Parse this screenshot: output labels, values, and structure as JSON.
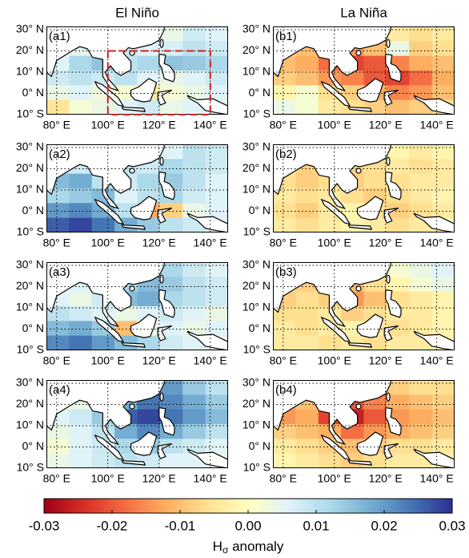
{
  "figure": {
    "type": "map-grid",
    "columns": [
      "El Niño",
      "La Niña"
    ],
    "xlim": [
      76,
      147
    ],
    "ylim": [
      -10,
      31.5
    ],
    "xticks": [
      {
        "value": 80,
        "label": "80° E"
      },
      {
        "value": 100,
        "label": "100° E"
      },
      {
        "value": 120,
        "label": "120° E"
      },
      {
        "value": 140,
        "label": "140° E"
      }
    ],
    "yticks": [
      {
        "value": 30,
        "label": "30° N"
      },
      {
        "value": 20,
        "label": "20° N"
      },
      {
        "value": 10,
        "label": "10° N"
      },
      {
        "value": 0,
        "label": "0° N"
      },
      {
        "value": -10,
        "label": "10° S"
      }
    ],
    "grid": true,
    "panels": [
      {
        "label": "(a1)",
        "values": [
          [
            0.002,
            0.004,
            0.005,
            0.003,
            0.006,
            0.004,
            0.008,
            0.006
          ],
          [
            0.003,
            0.005,
            0.004,
            0.008,
            0.006,
            0.007,
            0.01,
            0.008
          ],
          [
            0.006,
            0.012,
            0.015,
            0.01,
            0.012,
            0.015,
            0.014,
            0.012
          ],
          [
            0.008,
            0.01,
            0.008,
            0.01,
            0.006,
            0.004,
            0.006,
            0.008
          ],
          [
            0.004,
            0.006,
            0.003,
            0.002,
            -0.004,
            0.002,
            0.004,
            0.006
          ],
          [
            -0.005,
            0.002,
            0.004,
            0.006,
            0.008,
            0.004,
            0.006,
            0.005
          ]
        ]
      },
      {
        "label": "(a2)",
        "values": [
          [
            0.004,
            0.006,
            0.004,
            0.008,
            -0.006,
            0.006,
            0.01,
            0.008
          ],
          [
            0.01,
            0.008,
            0.006,
            0.01,
            0.008,
            0.012,
            0.01,
            0.008
          ],
          [
            0.016,
            0.018,
            0.01,
            0.008,
            0.012,
            0.014,
            0.01,
            0.006
          ],
          [
            0.012,
            0.014,
            0.016,
            0.006,
            0.01,
            0.012,
            0.008,
            0.006
          ],
          [
            0.02,
            0.022,
            0.018,
            0.01,
            -0.012,
            -0.008,
            0.004,
            0.006
          ],
          [
            0.026,
            0.028,
            0.024,
            0.018,
            0.014,
            0.01,
            0.008,
            0.006
          ]
        ]
      },
      {
        "label": "(a3)",
        "values": [
          [
            0.002,
            0.004,
            0.008,
            0.006,
            0.01,
            0.012,
            0.008,
            0.006
          ],
          [
            0.004,
            0.006,
            0.004,
            0.012,
            0.016,
            0.014,
            0.01,
            0.008
          ],
          [
            0.006,
            0.004,
            0.008,
            0.016,
            0.018,
            0.012,
            0.01,
            0.008
          ],
          [
            0.01,
            0.008,
            0.006,
            0.004,
            0.006,
            0.008,
            0.006,
            0.004
          ],
          [
            0.016,
            0.018,
            0.014,
            -0.01,
            0.004,
            0.006,
            0.004,
            0.006
          ],
          [
            0.022,
            0.024,
            0.02,
            0.016,
            0.012,
            0.008,
            0.006,
            0.004
          ]
        ]
      },
      {
        "label": "(a4)",
        "values": [
          [
            -0.004,
            -0.002,
            0.006,
            0.01,
            0.016,
            0.02,
            0.014,
            0.01
          ],
          [
            0.002,
            0.004,
            0.01,
            0.018,
            0.024,
            0.022,
            0.018,
            0.014
          ],
          [
            0.006,
            0.008,
            0.014,
            0.026,
            0.028,
            0.024,
            0.02,
            0.016
          ],
          [
            0.004,
            0.006,
            0.01,
            0.018,
            0.022,
            0.018,
            0.014,
            0.01
          ],
          [
            0.002,
            0.006,
            0.008,
            0.012,
            0.014,
            0.01,
            0.008,
            0.006
          ],
          [
            0.004,
            0.006,
            0.008,
            0.01,
            0.008,
            0.006,
            0.006,
            0.004
          ]
        ]
      },
      {
        "label": "(b1)",
        "values": [
          [
            -0.004,
            -0.006,
            -0.004,
            -0.008,
            -0.006,
            -0.004,
            -0.006,
            -0.004
          ],
          [
            -0.008,
            -0.01,
            -0.012,
            -0.014,
            -0.01,
            0.004,
            -0.008,
            -0.006
          ],
          [
            -0.01,
            -0.012,
            -0.018,
            -0.022,
            -0.02,
            -0.016,
            -0.012,
            -0.01
          ],
          [
            -0.008,
            -0.01,
            -0.014,
            -0.016,
            -0.02,
            -0.022,
            -0.018,
            -0.012
          ],
          [
            -0.002,
            0.002,
            -0.006,
            -0.008,
            -0.012,
            -0.016,
            -0.014,
            -0.01
          ],
          [
            0.004,
            0.002,
            -0.004,
            -0.006,
            -0.008,
            -0.01,
            -0.008,
            -0.006
          ]
        ]
      },
      {
        "label": "(b2)",
        "values": [
          [
            -0.004,
            -0.006,
            -0.004,
            -0.006,
            -0.004,
            -0.002,
            -0.004,
            -0.002
          ],
          [
            -0.006,
            -0.008,
            -0.006,
            -0.008,
            -0.006,
            -0.004,
            -0.006,
            -0.004
          ],
          [
            -0.006,
            -0.008,
            -0.006,
            -0.008,
            -0.006,
            -0.006,
            -0.004,
            -0.004
          ],
          [
            -0.004,
            -0.006,
            -0.004,
            -0.006,
            -0.008,
            -0.006,
            -0.004,
            -0.002
          ],
          [
            -0.006,
            -0.008,
            -0.004,
            -0.002,
            -0.006,
            -0.008,
            -0.006,
            -0.004
          ],
          [
            -0.004,
            -0.006,
            -0.004,
            -0.002,
            -0.004,
            -0.006,
            -0.004,
            -0.002
          ]
        ]
      },
      {
        "label": "(b3)",
        "values": [
          [
            -0.004,
            -0.006,
            -0.004,
            -0.006,
            -0.004,
            0.002,
            0.004,
            0.006
          ],
          [
            -0.006,
            -0.008,
            -0.006,
            -0.01,
            -0.006,
            -0.002,
            0.002,
            0.004
          ],
          [
            -0.008,
            -0.006,
            -0.008,
            -0.014,
            -0.01,
            -0.006,
            -0.004,
            -0.002
          ],
          [
            -0.006,
            -0.006,
            -0.004,
            -0.008,
            -0.006,
            -0.004,
            -0.004,
            -0.002
          ],
          [
            -0.004,
            -0.006,
            -0.004,
            -0.002,
            -0.004,
            -0.006,
            -0.004,
            -0.002
          ],
          [
            -0.004,
            -0.004,
            -0.006,
            -0.004,
            -0.006,
            -0.004,
            -0.004,
            -0.002
          ]
        ]
      },
      {
        "label": "(b4)",
        "values": [
          [
            -0.008,
            -0.006,
            -0.008,
            -0.012,
            -0.01,
            -0.008,
            -0.006,
            -0.006
          ],
          [
            -0.012,
            -0.01,
            -0.016,
            -0.02,
            -0.016,
            -0.012,
            -0.01,
            -0.008
          ],
          [
            -0.014,
            -0.012,
            -0.022,
            -0.026,
            -0.02,
            -0.014,
            -0.012,
            -0.01
          ],
          [
            -0.008,
            -0.01,
            -0.012,
            -0.018,
            -0.014,
            -0.012,
            -0.01,
            -0.008
          ],
          [
            -0.004,
            -0.006,
            -0.008,
            -0.01,
            -0.008,
            -0.006,
            -0.006,
            -0.004
          ],
          [
            -0.002,
            -0.004,
            -0.006,
            -0.008,
            -0.006,
            -0.004,
            -0.004,
            -0.002
          ]
        ]
      }
    ],
    "colorbar": {
      "colors": [
        "#9e0016",
        "#d73027",
        "#f46d43",
        "#fdae61",
        "#fee090",
        "#ffffbf",
        "#e0f3f8",
        "#abd9e9",
        "#74add1",
        "#4575b4",
        "#2b2f92"
      ],
      "lim": [
        -0.03,
        0.03
      ],
      "ticks": [
        -0.03,
        -0.02,
        -0.01,
        {
          "value": 0,
          "label": "0.00"
        },
        0.01,
        0.02,
        0.03
      ],
      "label": "H",
      "label_subscript": "σ",
      "label_suffix": " anomaly"
    }
  }
}
